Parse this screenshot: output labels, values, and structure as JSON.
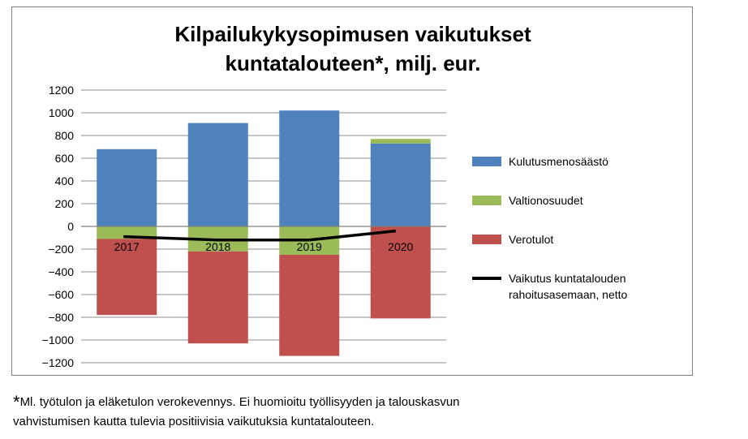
{
  "chart_data": {
    "type": "bar",
    "stacked": true,
    "title_lines": [
      "Kilpailukykysopimusen vaikutukset",
      "kuntatalouteen*, milj. eur."
    ],
    "categories": [
      "2017",
      "2018",
      "2019",
      "2020"
    ],
    "ylim": [
      -1200,
      1200
    ],
    "yticks": [
      1200,
      1000,
      800,
      600,
      400,
      200,
      0,
      -200,
      -400,
      -600,
      -800,
      -1000,
      -1200
    ],
    "ytick_labels": [
      "1200",
      "1000",
      "800",
      "600",
      "400",
      "200",
      "0",
      "−200",
      "−400",
      "−600",
      "−800",
      "−1000",
      "−1200"
    ],
    "grid": true,
    "legend_position": "right",
    "series": [
      {
        "name": "Kulutusmenosäästö",
        "type": "bar",
        "color": "#4f81bd",
        "values": [
          680,
          910,
          1020,
          730
        ]
      },
      {
        "name": "Valtionosuudet",
        "type": "bar",
        "color": "#9bbb59",
        "values": [
          -110,
          -220,
          -250,
          40
        ]
      },
      {
        "name": "Verotulot",
        "type": "bar",
        "color": "#c0504d",
        "values": [
          -670,
          -810,
          -890,
          -810
        ]
      },
      {
        "name": "Vaikutus kuntatalouden rahoitusasemaan, netto",
        "type": "line",
        "color": "#000000",
        "values": [
          -90,
          -120,
          -120,
          -40
        ]
      }
    ],
    "legend_lines": [
      [
        "Kulutusmenosäästö"
      ],
      [
        "Valtionosuudet"
      ],
      [
        "Verotulot"
      ],
      [
        "Vaikutus kuntatalouden",
        "rahoitusasemaan, netto"
      ]
    ]
  },
  "footnote": {
    "star": "*",
    "line1": "Ml. työtulon ja eläketulon verokevennys.  Ei huomioitu työllisyyden ja talouskasvun",
    "line2": "vahvistumisen kautta tulevia positiivisia vaikutuksia kuntatalouteen."
  }
}
